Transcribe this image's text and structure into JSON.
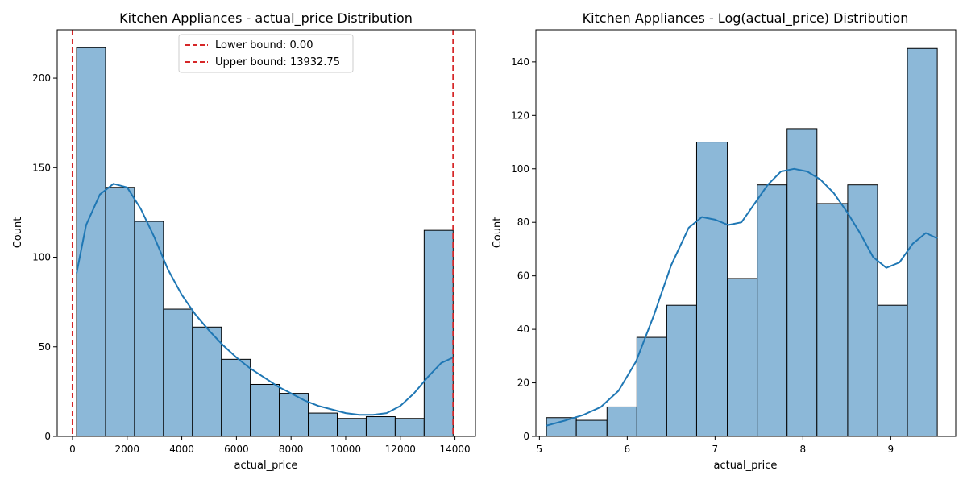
{
  "colors": {
    "bar_fill": "#8cb8d8",
    "bar_edge": "#000000",
    "kde_line": "#1f77b4",
    "bound_line": "#d62728"
  },
  "chart_data": [
    {
      "type": "bar",
      "subtype": "histogram_with_kde",
      "title": "Kitchen Appliances - actual_price Distribution",
      "xlabel": "actual_price",
      "ylabel": "Count",
      "xlim": [
        -560,
        14750
      ],
      "ylim": [
        0,
        227
      ],
      "xticks": [
        0,
        2000,
        4000,
        6000,
        8000,
        10000,
        12000,
        14000
      ],
      "xtick_labels": [
        "0",
        "2000",
        "4000",
        "6000",
        "8000",
        "10000",
        "12000",
        "14000"
      ],
      "yticks": [
        0,
        50,
        100,
        150,
        200
      ],
      "ytick_labels": [
        "0",
        "50",
        "100",
        "150",
        "200"
      ],
      "bin_edges": [
        149,
        1209.25,
        2269.5,
        3329.75,
        4390,
        5450.25,
        6510.5,
        7570.75,
        8631,
        9691.25,
        10751.5,
        11811.75,
        12872,
        13932.75
      ],
      "counts": [
        217,
        139,
        120,
        71,
        61,
        43,
        29,
        24,
        13,
        10,
        11,
        10,
        115
      ],
      "kde": {
        "x": [
          149,
          500,
          1000,
          1500,
          2000,
          2500,
          3000,
          3500,
          4000,
          4500,
          5000,
          5500,
          6000,
          6500,
          7000,
          7500,
          8000,
          8500,
          9000,
          9500,
          10000,
          10500,
          11000,
          11500,
          12000,
          12500,
          13000,
          13500,
          13932
        ],
        "y": [
          91,
          118,
          135,
          141,
          139,
          127,
          111,
          93,
          79,
          68,
          59,
          51,
          44,
          38,
          33,
          28,
          24,
          20,
          17,
          15,
          13,
          12,
          12,
          13,
          17,
          24,
          33,
          41,
          44
        ]
      },
      "vlines": [
        {
          "x": 0,
          "label": "Lower bound: 0.00"
        },
        {
          "x": 13932.75,
          "label": "Upper bound: 13932.75"
        }
      ],
      "legend_position": "top-center",
      "grid": false
    },
    {
      "type": "bar",
      "subtype": "histogram_with_kde",
      "title": "Kitchen Appliances - Log(actual_price) Distribution",
      "xlabel": "actual_price",
      "ylabel": "Count",
      "xlim": [
        4.96,
        9.74
      ],
      "ylim": [
        0,
        152
      ],
      "xticks": [
        5,
        6,
        7,
        8,
        9
      ],
      "xtick_labels": [
        "5",
        "6",
        "7",
        "8",
        "9"
      ],
      "yticks": [
        0,
        20,
        40,
        60,
        80,
        100,
        120,
        140
      ],
      "ytick_labels": [
        "0",
        "20",
        "40",
        "60",
        "80",
        "100",
        "120",
        "140"
      ],
      "bin_edges": [
        5.08,
        5.42,
        5.77,
        6.11,
        6.45,
        6.79,
        7.14,
        7.48,
        7.82,
        8.16,
        8.51,
        8.85,
        9.19,
        9.53
      ],
      "counts": [
        7,
        6,
        11,
        37,
        49,
        110,
        59,
        94,
        115,
        87,
        94,
        49,
        145
      ],
      "kde": {
        "x": [
          5.08,
          5.3,
          5.5,
          5.7,
          5.9,
          6.1,
          6.3,
          6.5,
          6.7,
          6.85,
          7.0,
          7.15,
          7.3,
          7.45,
          7.6,
          7.75,
          7.9,
          8.05,
          8.2,
          8.35,
          8.5,
          8.65,
          8.8,
          8.95,
          9.1,
          9.25,
          9.4,
          9.53
        ],
        "y": [
          4,
          6,
          8,
          11,
          17,
          28,
          45,
          64,
          78,
          82,
          81,
          79,
          80,
          87,
          94,
          99,
          100,
          99,
          96,
          91,
          84,
          76,
          67,
          63,
          65,
          72,
          76,
          74
        ]
      },
      "legend_position": "none",
      "grid": false
    }
  ]
}
